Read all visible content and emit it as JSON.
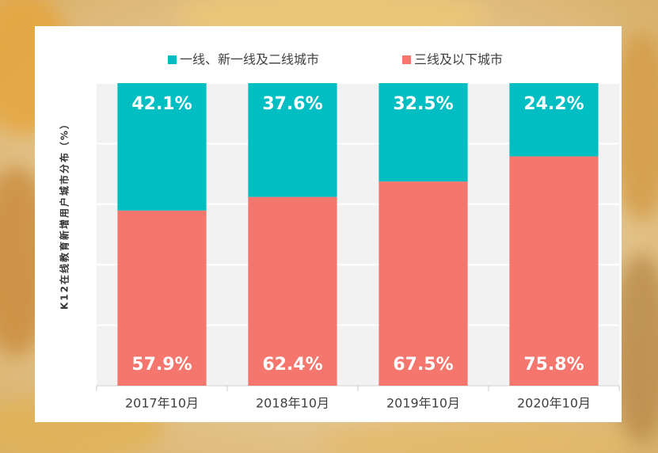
{
  "chart_data": {
    "type": "stacked-bar",
    "y_label": "K12在线教育新增用户城市分布（%）",
    "categories": [
      "2017年10月",
      "2018年10月",
      "2019年10月",
      "2020年10月"
    ],
    "series": [
      {
        "name": "三线及以下城市",
        "color": "#f5766d",
        "values": [
          57.9,
          62.4,
          67.5,
          75.8
        ],
        "value_labels": [
          "57.9%",
          "62.4%",
          "67.5%",
          "75.8%"
        ]
      },
      {
        "name": "一线、新一线及二线城市",
        "color": "#00bec2",
        "values": [
          42.1,
          37.6,
          32.5,
          24.2
        ],
        "value_labels": [
          "42.1%",
          "37.6%",
          "32.5%",
          "24.2%"
        ]
      }
    ],
    "legend_order": [
      1,
      0
    ],
    "ylim": [
      0,
      100
    ],
    "yticks": [
      0,
      20,
      40,
      60,
      80,
      100
    ],
    "grid": true
  }
}
